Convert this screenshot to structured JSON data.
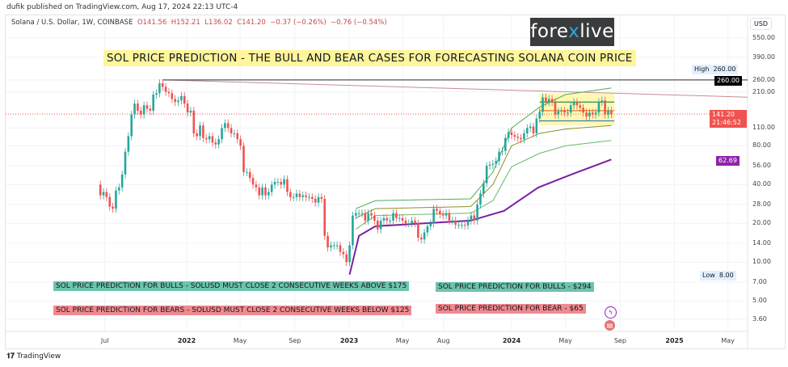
{
  "header": {
    "published": "dufik published on TradingView.com, Aug 17, 2024 22:13 UTC-4",
    "symbol": "Solana / U.S. Dollar, 1W, COINBASE",
    "open": "O141.56",
    "high": "H152.21",
    "low": "L136.02",
    "close": "C141.20",
    "change": "−0.37 (−0.26%)",
    "change2": "−0.76 (−0.54%)"
  },
  "logo": {
    "brand_a": "fore",
    "brand_x": "x",
    "brand_b": "live"
  },
  "banner": "SOL PRICE PREDICTION - THE BULL AND BEAR CASES FOR FORECASTING SOLANA COIN PRICE",
  "notes": {
    "bulls_condition": "SOL PRICE PREDICTION FOR BULLS - SOLUSD MUST CLOSE 2 CONSECUTIVE WEEKS ABOVE $175",
    "bulls_target": "SOL PRICE PREDICTION FOR BULLS - $294",
    "bears_condition": "SOL PRICE PREDICTION FOR BEARS - SOLUSD MUST CLOSE 2 CONSECUTIVE WEEKS BELOW $125",
    "bears_target": "SOL PRICE PREDICTION FOR BEAR - $65"
  },
  "footer": {
    "brand": "TradingView"
  },
  "colors": {
    "up": "#26a69a",
    "down": "#ef5350",
    "purple": "#7b1fa2",
    "band_upper": "#4caf50",
    "band_mid": "#8d8d2a",
    "band_lower": "#66bb6a",
    "trendline": "#c78d94",
    "highline": "#555555",
    "box": "#fff59a"
  },
  "chart_data": {
    "type": "candlestick",
    "title": "Solana / U.S. Dollar, 1W, COINBASE",
    "yscale": "log",
    "ylim": [
      3.2,
      650
    ],
    "xlim": [
      "2021-05-01",
      "2025-07-01"
    ],
    "currency": "USD",
    "y_ticks": [
      "550.00",
      "390.00",
      "260.00",
      "210.00",
      "110.00",
      "80.00",
      "56.00",
      "40.00",
      "28.00",
      "20.00",
      "14.00",
      "10.00",
      "7.00",
      "5.00",
      "3.60"
    ],
    "x_ticks": [
      {
        "label": "Jul",
        "date": "2021-07-01",
        "bold": false
      },
      {
        "label": "2022",
        "date": "2022-01-01",
        "bold": true
      },
      {
        "label": "May",
        "date": "2022-05-01",
        "bold": false
      },
      {
        "label": "Sep",
        "date": "2022-09-01",
        "bold": false
      },
      {
        "label": "2023",
        "date": "2023-01-01",
        "bold": true
      },
      {
        "label": "May",
        "date": "2023-05-01",
        "bold": false
      },
      {
        "label": "Aug",
        "date": "2023-08-01",
        "bold": false
      },
      {
        "label": "2024",
        "date": "2024-01-01",
        "bold": true
      },
      {
        "label": "May",
        "date": "2024-05-01",
        "bold": false
      },
      {
        "label": "Sep",
        "date": "2024-09-01",
        "bold": false
      },
      {
        "label": "2025",
        "date": "2025-01-01",
        "bold": true
      },
      {
        "label": "May",
        "date": "2025-05-01",
        "bold": false
      }
    ],
    "weeks": [
      "2021-06-21",
      "2021-06-28",
      "2021-07-05",
      "2021-07-12",
      "2021-07-19",
      "2021-07-26",
      "2021-08-02",
      "2021-08-09",
      "2021-08-16",
      "2021-08-23",
      "2021-08-30",
      "2021-09-06",
      "2021-09-13",
      "2021-09-20",
      "2021-09-27",
      "2021-10-04",
      "2021-10-11",
      "2021-10-18",
      "2021-10-25",
      "2021-11-01",
      "2021-11-08",
      "2021-11-15",
      "2021-11-22",
      "2021-11-29",
      "2021-12-06",
      "2021-12-13",
      "2021-12-20",
      "2021-12-27",
      "2022-01-03",
      "2022-01-10",
      "2022-01-17",
      "2022-01-24",
      "2022-01-31",
      "2022-02-07",
      "2022-02-14",
      "2022-02-21",
      "2022-02-28",
      "2022-03-07",
      "2022-03-14",
      "2022-03-21",
      "2022-03-28",
      "2022-04-04",
      "2022-04-11",
      "2022-04-18",
      "2022-04-25",
      "2022-05-02",
      "2022-05-09",
      "2022-05-16",
      "2022-05-23",
      "2022-05-30",
      "2022-06-06",
      "2022-06-13",
      "2022-06-20",
      "2022-06-27",
      "2022-07-04",
      "2022-07-11",
      "2022-07-18",
      "2022-07-25",
      "2022-08-01",
      "2022-08-08",
      "2022-08-15",
      "2022-08-22",
      "2022-08-29",
      "2022-09-05",
      "2022-09-12",
      "2022-09-19",
      "2022-09-26",
      "2022-10-03",
      "2022-10-10",
      "2022-10-17",
      "2022-10-24",
      "2022-10-31",
      "2022-11-07",
      "2022-11-14",
      "2022-11-21",
      "2022-11-28",
      "2022-12-05",
      "2022-12-12",
      "2022-12-19",
      "2022-12-26",
      "2023-01-02",
      "2023-01-09",
      "2023-01-16",
      "2023-01-23",
      "2023-01-30",
      "2023-02-06",
      "2023-02-13",
      "2023-02-20",
      "2023-02-27",
      "2023-03-06",
      "2023-03-13",
      "2023-03-20",
      "2023-03-27",
      "2023-04-03",
      "2023-04-10",
      "2023-04-17",
      "2023-04-24",
      "2023-05-01",
      "2023-05-08",
      "2023-05-15",
      "2023-05-22",
      "2023-05-29",
      "2023-06-05",
      "2023-06-12",
      "2023-06-19",
      "2023-06-26",
      "2023-07-03",
      "2023-07-10",
      "2023-07-17",
      "2023-07-24",
      "2023-07-31",
      "2023-08-07",
      "2023-08-14",
      "2023-08-21",
      "2023-08-28",
      "2023-09-04",
      "2023-09-11",
      "2023-09-18",
      "2023-09-25",
      "2023-10-02",
      "2023-10-09",
      "2023-10-16",
      "2023-10-23",
      "2023-10-30",
      "2023-11-06",
      "2023-11-13",
      "2023-11-20",
      "2023-11-27",
      "2023-12-04",
      "2023-12-11",
      "2023-12-18",
      "2023-12-25",
      "2024-01-01",
      "2024-01-08",
      "2024-01-15",
      "2024-01-22",
      "2024-01-29",
      "2024-02-05",
      "2024-02-12",
      "2024-02-19",
      "2024-02-26",
      "2024-03-04",
      "2024-03-11",
      "2024-03-18",
      "2024-03-25",
      "2024-04-01",
      "2024-04-08",
      "2024-04-15",
      "2024-04-22",
      "2024-04-29",
      "2024-05-06",
      "2024-05-13",
      "2024-05-20",
      "2024-05-27",
      "2024-06-03",
      "2024-06-10",
      "2024-06-17",
      "2024-06-24",
      "2024-07-01",
      "2024-07-08",
      "2024-07-15",
      "2024-07-22",
      "2024-07-29",
      "2024-08-05",
      "2024-08-12"
    ],
    "closes": [
      33,
      35,
      32,
      27,
      26,
      36,
      38,
      48,
      72,
      95,
      140,
      170,
      150,
      140,
      165,
      155,
      150,
      200,
      205,
      245,
      230,
      210,
      205,
      185,
      175,
      180,
      195,
      170,
      145,
      150,
      100,
      95,
      115,
      92,
      90,
      95,
      85,
      82,
      90,
      110,
      120,
      110,
      100,
      100,
      90,
      80,
      50,
      50,
      45,
      40,
      38,
      33,
      38,
      33,
      35,
      40,
      42,
      42,
      40,
      44,
      35,
      32,
      32,
      34,
      32,
      33,
      32,
      32,
      31,
      29,
      32,
      31,
      16,
      13,
      13.5,
      13.5,
      13.5,
      12,
      11.5,
      10,
      13.5,
      23,
      24,
      24,
      24,
      21,
      24,
      23,
      21,
      18,
      21,
      22,
      21,
      21,
      24,
      22,
      22,
      21,
      20,
      20,
      21,
      20,
      15.5,
      15,
      17,
      19,
      20,
      26,
      25,
      23.5,
      23,
      24,
      21,
      21,
      19.5,
      19.5,
      19.5,
      19.3,
      21,
      23,
      21,
      28,
      34,
      41,
      56,
      57,
      58,
      61,
      72,
      73,
      92,
      102,
      97,
      94,
      92,
      90,
      100,
      110,
      113,
      100,
      130,
      147,
      190,
      175,
      185,
      175,
      140,
      148,
      150,
      145,
      145,
      165,
      175,
      165,
      158,
      145,
      135,
      145,
      140,
      145,
      175,
      180,
      140,
      150,
      141.2
    ],
    "first_open": 40,
    "overlays": {
      "band_upper": [
        [
          "2023-01-16",
          26
        ],
        [
          "2023-03-01",
          30
        ],
        [
          "2023-10-01",
          31
        ],
        [
          "2023-11-20",
          50
        ],
        [
          "2024-01-01",
          110
        ],
        [
          "2024-03-04",
          160
        ],
        [
          "2024-05-01",
          200
        ],
        [
          "2024-08-12",
          225
        ]
      ],
      "band_mid": [
        [
          "2023-01-16",
          22
        ],
        [
          "2023-03-01",
          26
        ],
        [
          "2023-10-01",
          27
        ],
        [
          "2023-11-20",
          40
        ],
        [
          "2024-01-01",
          80
        ],
        [
          "2024-03-04",
          100
        ],
        [
          "2024-05-01",
          108
        ],
        [
          "2024-08-12",
          115
        ]
      ],
      "band_lower": [
        [
          "2023-01-16",
          18
        ],
        [
          "2023-03-01",
          23
        ],
        [
          "2023-10-01",
          24
        ],
        [
          "2023-11-20",
          30
        ],
        [
          "2024-01-01",
          55
        ],
        [
          "2024-03-04",
          70
        ],
        [
          "2024-05-01",
          80
        ],
        [
          "2024-08-12",
          88
        ]
      ],
      "vwap_purple": [
        [
          "2023-01-02",
          8
        ],
        [
          "2023-01-23",
          16
        ],
        [
          "2023-03-01",
          19
        ],
        [
          "2023-10-01",
          21
        ],
        [
          "2023-12-15",
          25
        ],
        [
          "2024-03-01",
          38
        ],
        [
          "2024-05-15",
          48
        ],
        [
          "2024-08-12",
          62.69
        ]
      ],
      "trendline": [
        [
          "2021-11-08",
          260
        ],
        [
          "2025-07-01",
          190
        ]
      ],
      "high_line": {
        "from": "2021-11-08",
        "value": 260
      },
      "range_box": {
        "from": "2024-03-04",
        "to": "2024-08-19",
        "top": 205,
        "bottom": 115,
        "levels": [
          175,
          150,
          125
        ]
      },
      "last_price": 141.2
    },
    "price_tags": {
      "high_label": "High",
      "high": "260.00",
      "high_line": "260.00",
      "last": "141.20",
      "countdown": "21:46:52",
      "purple": "62.69",
      "low_label": "Low",
      "low": "8.00"
    }
  }
}
